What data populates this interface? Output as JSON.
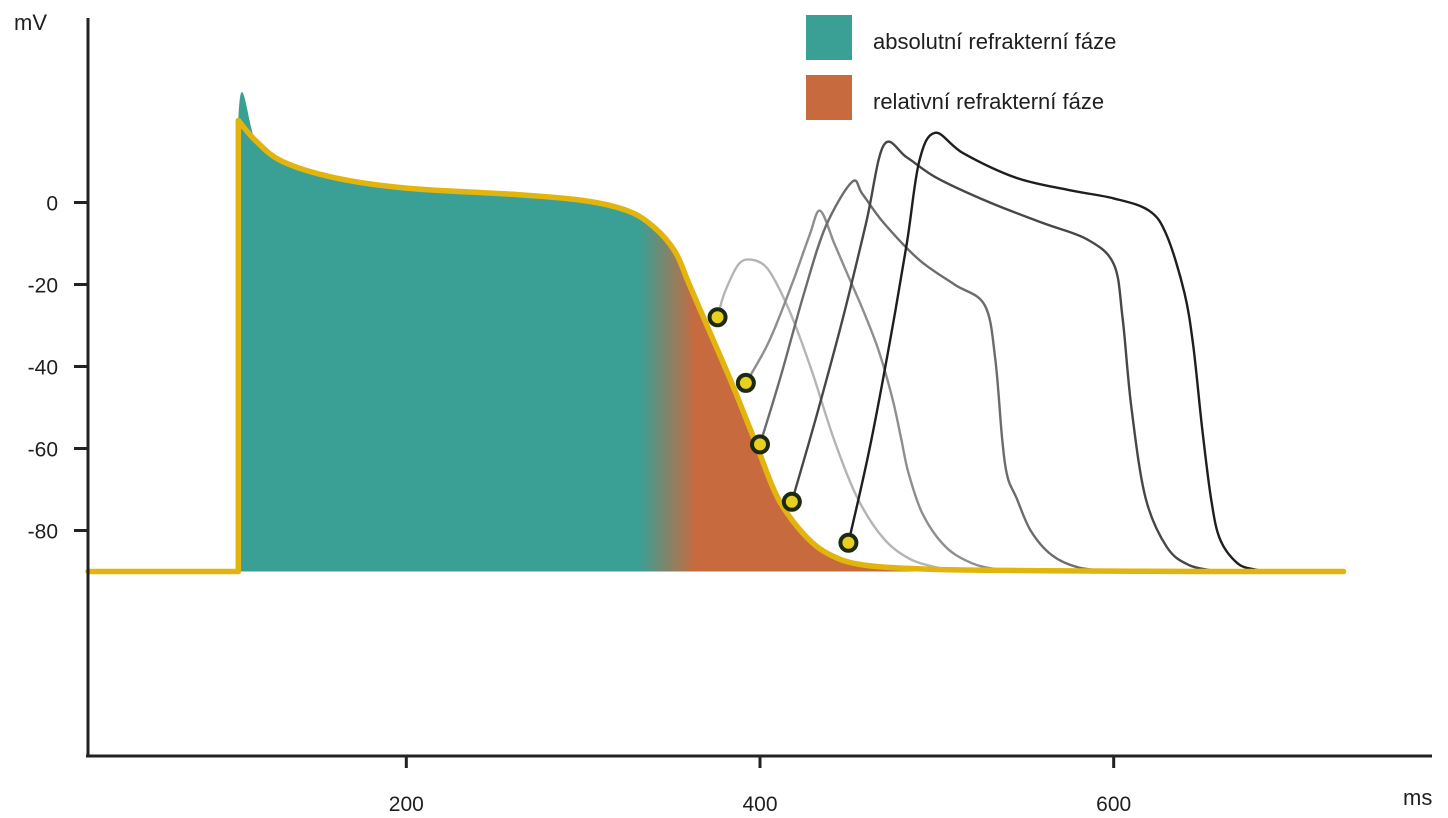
{
  "chart_data": {
    "type": "line",
    "title": "",
    "xlabel": "ms",
    "ylabel": "mV",
    "xlim": [
      20,
      780
    ],
    "ylim": [
      -135,
      45
    ],
    "grid": false,
    "legend_position": "top-right",
    "x_ticks": [
      {
        "value": 200,
        "label": "200"
      },
      {
        "value": 400,
        "label": "400"
      },
      {
        "value": 600,
        "label": "600"
      }
    ],
    "y_ticks": [
      {
        "value": 0,
        "label": "0"
      },
      {
        "value": -20,
        "label": "-20"
      },
      {
        "value": -40,
        "label": "-40"
      },
      {
        "value": -60,
        "label": "-60"
      },
      {
        "value": -80,
        "label": "-80"
      }
    ],
    "legend": [
      {
        "label": "absolutní refrakterní fáze",
        "color": "#3a9f94"
      },
      {
        "label": "relativní refrakterní fáze",
        "color": "#c76a3e"
      }
    ],
    "colors": {
      "main_curve": "#e2b40e",
      "absolute_phase": "#3a9f94",
      "relative_phase": "#c76a3e",
      "axis": "#222222"
    },
    "series": [
      {
        "role": "main",
        "x": [
          20,
          105,
          105,
          115,
          130,
          160,
          200,
          260,
          300,
          325,
          340,
          352,
          360,
          372,
          384,
          397,
          410,
          425,
          440,
          460,
          500,
          560,
          650,
          730
        ],
        "y": [
          -90,
          -90,
          20,
          15,
          10,
          6,
          3.5,
          2,
          0.5,
          -2,
          -6,
          -12,
          -20,
          -32,
          -44,
          -58,
          -72,
          -81,
          -86,
          -88.5,
          -89.5,
          -89.8,
          -90,
          -90
        ]
      },
      {
        "role": "stimulated",
        "start_x": 376,
        "x": [
          376,
          380,
          388,
          396,
          404,
          412,
          420,
          430,
          442,
          455,
          470,
          485,
          500,
          510
        ],
        "y": [
          -28,
          -22,
          -15,
          -14,
          -16,
          -22,
          -30,
          -42,
          -58,
          -72,
          -82,
          -87,
          -89,
          -90
        ]
      },
      {
        "role": "stimulated",
        "start_x": 392,
        "x": [
          392,
          405,
          418,
          428,
          434,
          442,
          450,
          458,
          467,
          475,
          480,
          484,
          492,
          505,
          520,
          535,
          550
        ],
        "y": [
          -44,
          -34,
          -20,
          -8,
          -2,
          -10,
          -18,
          -26,
          -36,
          -48,
          -58,
          -66,
          -76,
          -84,
          -88,
          -89.5,
          -90
        ]
      },
      {
        "role": "stimulated",
        "start_x": 400,
        "x": [
          400,
          412,
          425,
          437,
          452,
          458,
          470,
          490,
          510,
          527,
          533,
          537,
          540,
          545,
          553,
          565,
          580,
          600
        ],
        "y": [
          -59,
          -42,
          -22,
          -6,
          5,
          2,
          -5,
          -14,
          -20,
          -25,
          -38,
          -58,
          -67,
          -72,
          -80,
          -86,
          -89,
          -90
        ]
      },
      {
        "role": "stimulated",
        "start_x": 418,
        "x": [
          418,
          432,
          447,
          460,
          470,
          483,
          500,
          530,
          560,
          585,
          600,
          605,
          610,
          618,
          630,
          643,
          660
        ],
        "y": [
          -73,
          -52,
          -28,
          -5,
          14,
          11,
          6,
          0,
          -5,
          -9,
          -15,
          -28,
          -50,
          -72,
          -84,
          -88.5,
          -90
        ]
      },
      {
        "role": "stimulated",
        "start_x": 450,
        "x": [
          450,
          462,
          473,
          483,
          490,
          499,
          515,
          545,
          575,
          600,
          620,
          630,
          640,
          645,
          650,
          655,
          660,
          670,
          680,
          690
        ],
        "y": [
          -83,
          -60,
          -35,
          -10,
          10,
          17,
          12,
          6,
          3,
          1,
          -2,
          -8,
          -22,
          -35,
          -55,
          -72,
          -82,
          -88,
          -89.5,
          -90
        ]
      }
    ]
  }
}
